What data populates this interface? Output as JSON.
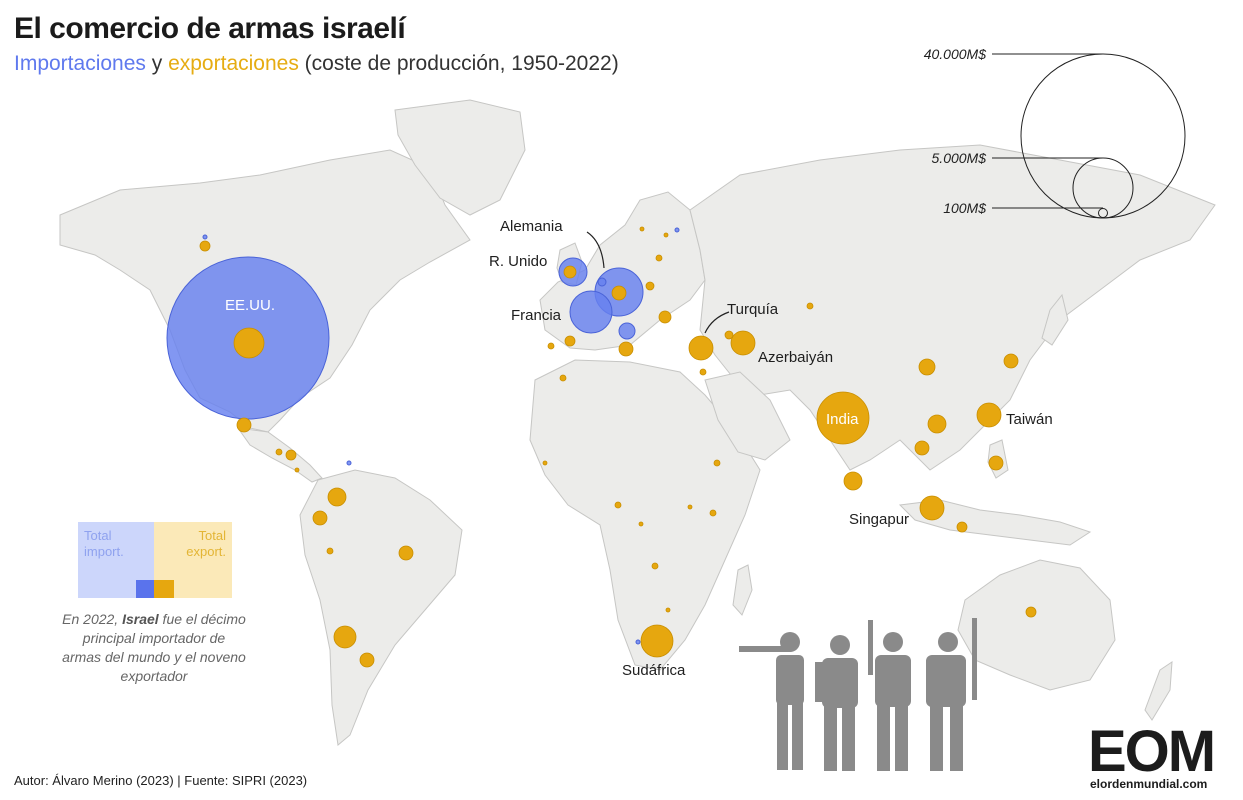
{
  "title": "El comercio de armas israelí",
  "subtitle": {
    "imports": "Importaciones",
    "connector": " y ",
    "exports": "exportaciones",
    "rest": " (coste de producción, 1950-2022)"
  },
  "scale_legend": {
    "large": "40.000M$",
    "medium": "5.000M$",
    "small": "100M$"
  },
  "country_labels": {
    "usa": "EE.UU.",
    "germany": "Alemania",
    "uk": "R. Unido",
    "france": "Francia",
    "turkey": "Turquía",
    "azerbaijan": "Azerbaiyán",
    "india": "India",
    "taiwan": "Taiwán",
    "singapore": "Singapur",
    "south_africa": "Sudáfrica"
  },
  "ratio_legend": {
    "imports_label": "Total import.",
    "exports_label": "Total export."
  },
  "note": {
    "before": "En 2022, ",
    "bold": "Israel",
    "after": " fue el décimo principal importador de armas del mundo y el noveno exportador"
  },
  "footer": "Autor: Álvaro Merino (2023) | Fuente: SIPRI (2023)",
  "logo": {
    "mark": "EOM",
    "site": "elordenmundial.com"
  },
  "colors": {
    "imports": "#5f79ee",
    "exports": "#e6ac12",
    "land": "#ececea",
    "border": "#bdbdbd"
  },
  "icons": [
    "soldier-silhouette",
    "scale-circles"
  ]
}
